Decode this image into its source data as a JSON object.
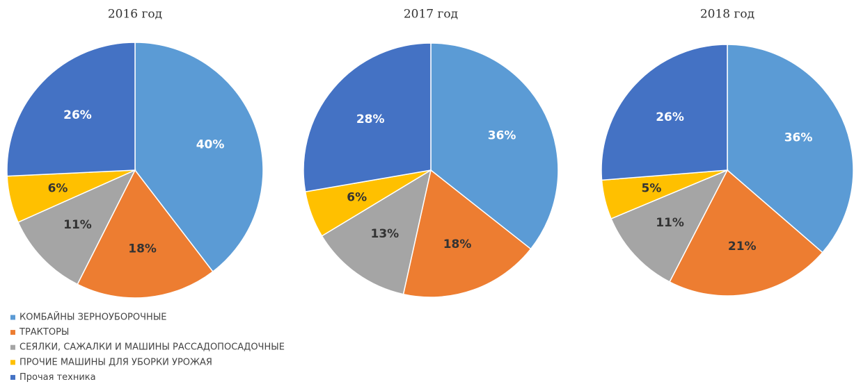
{
  "chart_data": [
    {
      "type": "pie",
      "title": "2016 год",
      "values": [
        40,
        18,
        11,
        6,
        26
      ],
      "value_labels": [
        "40%",
        "18%",
        "11%",
        "6%",
        "26%"
      ]
    },
    {
      "type": "pie",
      "title": "2017 год",
      "values": [
        36,
        18,
        13,
        6,
        28
      ],
      "value_labels": [
        "36%",
        "18%",
        "13%",
        "6%",
        "28%"
      ]
    },
    {
      "type": "pie",
      "title": "2018 год",
      "values": [
        36,
        21,
        11,
        5,
        26
      ],
      "value_labels": [
        "36%",
        "21%",
        "11%",
        "5%",
        "26%"
      ]
    }
  ],
  "legend": {
    "categories": [
      "КОМБАЙНЫ ЗЕРНОУБОРОЧНЫЕ",
      "ТРАКТОРЫ",
      "СЕЯЛКИ, САЖАЛКИ И МАШИНЫ РАССАДОПОСАДОЧНЫЕ",
      "ПРОЧИЕ МАШИНЫ ДЛЯ УБОРКИ УРОЖАЯ",
      "Прочая техника"
    ],
    "colors": [
      "#5b9bd5",
      "#ed7d31",
      "#a5a5a5",
      "#ffc000",
      "#4472c4"
    ]
  }
}
